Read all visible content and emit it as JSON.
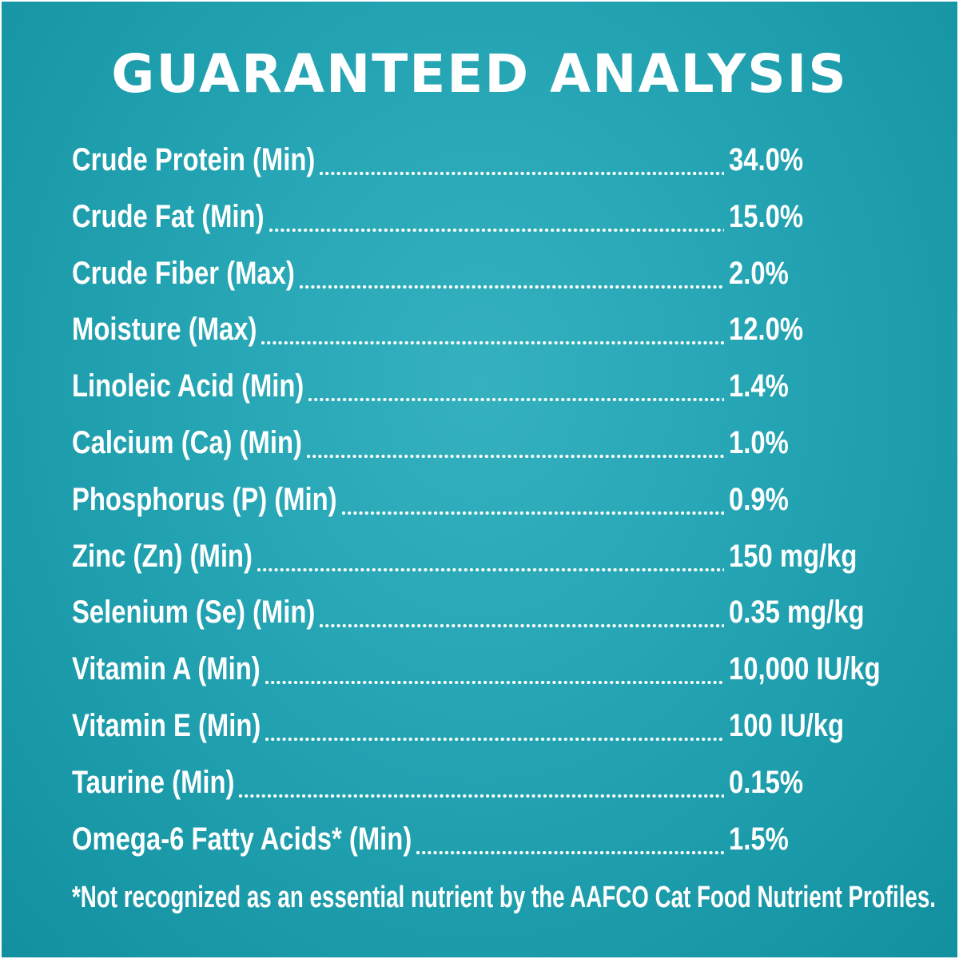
{
  "title": "GUARANTEED ANALYSIS",
  "rows": [
    {
      "name": "Crude Protein (Min)",
      "value": "34.0%"
    },
    {
      "name": "Crude Fat (Min)",
      "value": "15.0%"
    },
    {
      "name": "Crude Fiber (Max)",
      "value": "2.0%"
    },
    {
      "name": "Moisture (Max)",
      "value": "12.0%"
    },
    {
      "name": "Linoleic Acid (Min)",
      "value": "1.4%"
    },
    {
      "name": "Calcium (Ca) (Min)",
      "value": "1.0%"
    },
    {
      "name": "Phosphorus (P) (Min)",
      "value": "0.9%"
    },
    {
      "name": "Zinc (Zn) (Min)",
      "value": "150 mg/kg"
    },
    {
      "name": "Selenium (Se) (Min)",
      "value": "0.35 mg/kg"
    },
    {
      "name": "Vitamin A (Min)",
      "value": "10,000 IU/kg"
    },
    {
      "name": "Vitamin E (Min)",
      "value": "100 IU/kg"
    },
    {
      "name": "Taurine (Min)",
      "value": "0.15%"
    },
    {
      "name": "Omega-6 Fatty Acids* (Min)",
      "value": "1.5%"
    }
  ],
  "footnote": "*Not recognized as an essential nutrient by the AAFCO Cat Food Nutrient Profiles.",
  "colors": {
    "background": "#24a4b3",
    "text": "#ffffff"
  }
}
